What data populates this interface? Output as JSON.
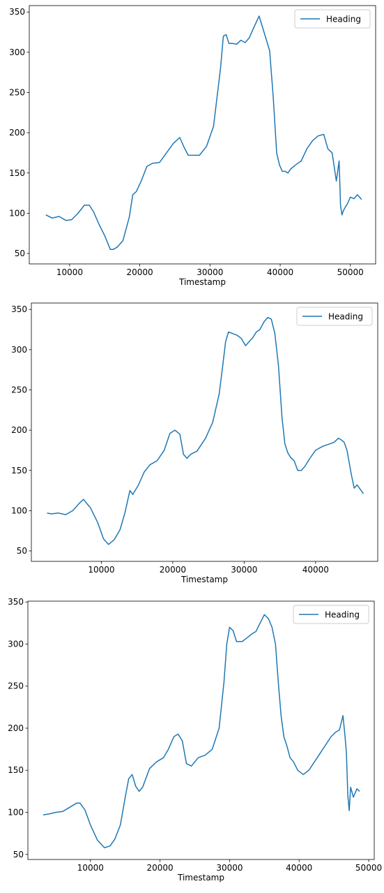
{
  "line_color": "#1f77b4",
  "chart_data": [
    {
      "type": "line",
      "title": "",
      "xlabel": "Timestamp",
      "ylabel": "",
      "xlim": [
        4250,
        53600
      ],
      "ylim": [
        37,
        358
      ],
      "xticks": [
        10000,
        20000,
        30000,
        40000,
        50000
      ],
      "yticks": [
        50,
        100,
        150,
        200,
        250,
        300,
        350
      ],
      "xtick_labels": [
        "10000",
        "20000",
        "30000",
        "40000",
        "50000"
      ],
      "ytick_labels": [
        "50",
        "100",
        "150",
        "200",
        "250",
        "300",
        "350"
      ],
      "legend_position": "top-right",
      "grid": false,
      "series": [
        {
          "name": "Heading",
          "x": [
            6600,
            7500,
            8500,
            9500,
            10300,
            11200,
            12100,
            12800,
            13400,
            14200,
            15000,
            15800,
            16200,
            16800,
            17600,
            18500,
            19000,
            19500,
            20200,
            21000,
            21800,
            22800,
            23800,
            24800,
            25700,
            26300,
            26900,
            27500,
            28500,
            29500,
            30500,
            31500,
            31900,
            32300,
            32700,
            33200,
            33800,
            34400,
            35000,
            35600,
            36200,
            37000,
            37800,
            38500,
            39000,
            39500,
            39900,
            40300,
            40700,
            41100,
            41500,
            42200,
            43000,
            43800,
            44600,
            45400,
            46200,
            46800,
            47400,
            48000,
            48400,
            48600,
            48800,
            49000,
            49300,
            49600,
            50000,
            50500,
            51000,
            51600
          ],
          "y": [
            98,
            94,
            96,
            91,
            92,
            100,
            110,
            110,
            102,
            86,
            72,
            55,
            55,
            58,
            66,
            95,
            123,
            127,
            140,
            158,
            162,
            163,
            175,
            187,
            194,
            182,
            172,
            172,
            172,
            183,
            208,
            280,
            320,
            322,
            311,
            311,
            310,
            315,
            312,
            318,
            330,
            345,
            322,
            302,
            245,
            175,
            160,
            152,
            152,
            150,
            155,
            160,
            165,
            180,
            190,
            196,
            198,
            180,
            175,
            140,
            165,
            110,
            98,
            103,
            108,
            112,
            120,
            118,
            123,
            117
          ]
        }
      ]
    },
    {
      "type": "line",
      "title": "",
      "xlabel": "Timestamp",
      "ylabel": "",
      "xlim": [
        200,
        48700
      ],
      "ylim": [
        37,
        358
      ],
      "xticks": [
        10000,
        20000,
        30000,
        40000
      ],
      "yticks": [
        50,
        100,
        150,
        200,
        250,
        300,
        350
      ],
      "xtick_labels": [
        "10000",
        "20000",
        "30000",
        "40000"
      ],
      "ytick_labels": [
        "50",
        "100",
        "150",
        "200",
        "250",
        "300",
        "350"
      ],
      "legend_position": "top-right",
      "grid": false,
      "series": [
        {
          "name": "Heading",
          "x": [
            2400,
            3000,
            4000,
            5000,
            6000,
            7000,
            7500,
            8500,
            9500,
            10300,
            11000,
            11800,
            12600,
            13300,
            14000,
            14400,
            15200,
            16000,
            16800,
            17800,
            18800,
            19600,
            20300,
            21000,
            21500,
            22000,
            22500,
            23400,
            24600,
            25600,
            26500,
            27000,
            27400,
            27800,
            28400,
            29000,
            29600,
            30200,
            30700,
            31200,
            31700,
            32200,
            32800,
            33300,
            33800,
            34300,
            34800,
            35300,
            35700,
            36100,
            36500,
            37000,
            37500,
            38000,
            38500,
            39200,
            40000,
            41000,
            42000,
            42600,
            43200,
            43600,
            44000,
            44400,
            44700,
            45000,
            45400,
            45800,
            46300,
            46700
          ],
          "y": [
            97,
            96,
            97,
            95,
            100,
            110,
            114,
            103,
            85,
            65,
            58,
            64,
            76,
            97,
            125,
            120,
            132,
            148,
            157,
            162,
            175,
            196,
            200,
            195,
            170,
            165,
            170,
            174,
            190,
            210,
            245,
            280,
            310,
            322,
            320,
            318,
            314,
            305,
            310,
            315,
            322,
            325,
            335,
            340,
            338,
            320,
            280,
            215,
            183,
            172,
            166,
            162,
            150,
            150,
            155,
            165,
            175,
            180,
            183,
            185,
            190,
            188,
            185,
            175,
            160,
            145,
            128,
            132,
            126,
            121
          ]
        }
      ]
    },
    {
      "type": "line",
      "title": "",
      "xlabel": "Timestamp",
      "ylabel": "",
      "xlim": [
        1000,
        50800
      ],
      "ylim": [
        44,
        351
      ],
      "xticks": [
        10000,
        20000,
        30000,
        40000,
        50000
      ],
      "yticks": [
        50,
        100,
        150,
        200,
        250,
        300,
        350
      ],
      "xtick_labels": [
        "10000",
        "20000",
        "30000",
        "40000",
        "50000"
      ],
      "ytick_labels": [
        "50",
        "100",
        "150",
        "200",
        "250",
        "300",
        "350"
      ],
      "legend_position": "top-right",
      "grid": false,
      "series": [
        {
          "name": "Heading",
          "x": [
            3200,
            4000,
            5000,
            6000,
            7000,
            8000,
            8500,
            9200,
            10000,
            11000,
            12000,
            12800,
            13500,
            14300,
            15000,
            15500,
            16000,
            16500,
            17000,
            17500,
            18500,
            19500,
            20500,
            21200,
            22000,
            22600,
            23200,
            23800,
            24500,
            25500,
            26500,
            27500,
            28500,
            29200,
            29600,
            30000,
            30500,
            31000,
            31800,
            32600,
            33200,
            33800,
            34400,
            35000,
            35600,
            36100,
            36600,
            37000,
            37400,
            37800,
            38200,
            38700,
            39200,
            39800,
            40600,
            41400,
            42200,
            43000,
            43800,
            44600,
            45200,
            45800,
            46300,
            46600,
            46800,
            47000,
            47200,
            47400,
            47800,
            48300,
            48700
          ],
          "y": [
            97,
            98,
            100,
            101,
            106,
            111,
            111,
            103,
            85,
            67,
            58,
            60,
            68,
            85,
            118,
            140,
            145,
            131,
            125,
            130,
            152,
            160,
            165,
            175,
            190,
            193,
            185,
            158,
            155,
            165,
            168,
            175,
            200,
            255,
            300,
            320,
            316,
            303,
            303,
            308,
            312,
            315,
            325,
            335,
            330,
            320,
            300,
            255,
            215,
            190,
            180,
            165,
            160,
            150,
            145,
            150,
            160,
            170,
            180,
            190,
            195,
            198,
            215,
            190,
            170,
            120,
            102,
            130,
            118,
            128,
            125
          ]
        }
      ]
    }
  ]
}
